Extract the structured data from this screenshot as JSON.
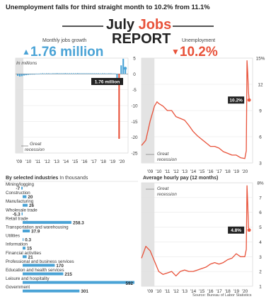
{
  "headline": "Unemployment falls for third straight month to 10.2% from 11.1%",
  "title": {
    "part1": "July ",
    "part2": "Jobs",
    "part3": "REPORT"
  },
  "jobs_growth": {
    "label": "Monthly jobs growth",
    "value": "1.76 million",
    "arrow": "▲",
    "units": "In millions",
    "callout": "1.76 million",
    "recession_label": [
      "Great",
      "recession"
    ]
  },
  "unemployment": {
    "label": "Unemployment",
    "value": "10.2%",
    "arrow": "▼",
    "callout": "10.2%",
    "recession_label": [
      "Great",
      "recession"
    ]
  },
  "industries": {
    "label": "By selected industries",
    "units": "In thousands"
  },
  "wages": {
    "label": "Average hourly pay (12 months)",
    "callout": "4.8%",
    "recession_label": [
      "Great",
      "recession"
    ]
  },
  "source": "Source: Bureau of Labor Statistics",
  "colors": {
    "blue": "#4aa3d6",
    "red": "#e8523a",
    "recession": "#e3e3e3",
    "grid": "#e2e2e2"
  },
  "chart_data": [
    {
      "type": "bar",
      "title": "Monthly jobs growth",
      "xlabel": "",
      "ylabel": "In millions",
      "x_ticks": [
        "'09",
        "'10",
        "'11",
        "'12",
        "'13",
        "'14",
        "'15",
        "'16",
        "'17",
        "'18",
        "'19",
        "'20"
      ],
      "y_ticks": [
        5,
        0,
        -5,
        -10,
        -15,
        -20,
        -25
      ],
      "ylim": [
        -25,
        5
      ],
      "series": [
        {
          "values": [
            -0.6,
            -0.8,
            -0.7,
            -0.5,
            -0.4,
            -0.3,
            -0.2,
            -0.1,
            0.0,
            0.1,
            0.1,
            0.15,
            0.2,
            0.15,
            0.2,
            0.2,
            0.15,
            0.2,
            0.2,
            0.25,
            0.2,
            0.2,
            0.2,
            0.25,
            0.2,
            0.2,
            0.2,
            0.2,
            0.2,
            0.25,
            0.2,
            0.2,
            0.2,
            0.2,
            0.2,
            0.2,
            0.2,
            0.2,
            0.2,
            0.2,
            0.15,
            0.2,
            0.2,
            0.15,
            0.2,
            0.2,
            0.15,
            0.15,
            -1.4,
            -20.5,
            2.7,
            4.8,
            1.76
          ]
        }
      ],
      "annotations": [
        "1.76 million"
      ],
      "shaded_region": [
        "'09"
      ]
    },
    {
      "type": "line",
      "title": "Unemployment",
      "xlabel": "",
      "ylabel": "",
      "x_ticks": [
        "'09",
        "'10",
        "'11",
        "'12",
        "'13",
        "'14",
        "'15",
        "'16",
        "'17",
        "'18",
        "'19",
        "'20"
      ],
      "y_ticks": [
        "15%",
        12,
        9,
        6,
        3
      ],
      "ylim": [
        3,
        15
      ],
      "x": [
        2008.0,
        2008.5,
        2009.0,
        2009.5,
        2009.8,
        2010.0,
        2010.5,
        2011.0,
        2011.5,
        2012.0,
        2012.5,
        2013.0,
        2013.5,
        2014.0,
        2014.5,
        2015.0,
        2015.5,
        2016.0,
        2016.5,
        2017.0,
        2017.5,
        2018.0,
        2018.5,
        2019.0,
        2019.5,
        2020.0,
        2020.17,
        2020.25,
        2020.33,
        2020.42,
        2020.5
      ],
      "series": [
        {
          "values": [
            5.0,
            5.6,
            7.8,
            9.5,
            10.0,
            9.8,
            9.5,
            9.0,
            9.0,
            8.3,
            8.1,
            7.9,
            7.3,
            6.6,
            6.1,
            5.7,
            5.3,
            4.9,
            4.9,
            4.7,
            4.3,
            4.1,
            3.9,
            3.9,
            3.6,
            3.5,
            4.4,
            14.7,
            13.3,
            11.1,
            10.2
          ]
        }
      ],
      "annotations": [
        "10.2%"
      ],
      "shaded_region": [
        "'09"
      ]
    },
    {
      "type": "bar",
      "title": "By selected industries",
      "xlabel": "",
      "ylabel": "In thousands",
      "categories": [
        "Mining/logging",
        "Construction",
        "Manufacturing",
        "Wholesale trade",
        "Retail trade",
        "Transportation and warehousing",
        "Utilities",
        "Information",
        "Financial activities",
        "Professional and business services",
        "Education and health services",
        "Leisure and hospitality",
        "Government"
      ],
      "values": [
        -7,
        20,
        26,
        -5.3,
        258.3,
        37.9,
        0.3,
        15,
        21,
        170,
        215,
        592,
        301
      ],
      "value_labels": [
        "-7",
        "20",
        "26",
        "-5.3",
        "258.3",
        "37.9",
        "0.3",
        "15",
        "21",
        "170",
        "215",
        "592",
        "301"
      ]
    },
    {
      "type": "line",
      "title": "Average hourly pay (12 months)",
      "xlabel": "",
      "ylabel": "",
      "x_ticks": [
        "'09",
        "'10",
        "'11",
        "'12",
        "'13",
        "'14",
        "'15",
        "'16",
        "'17",
        "'18",
        "'19",
        "'20"
      ],
      "y_ticks": [
        "8%",
        7,
        6,
        5,
        4,
        3,
        2,
        1
      ],
      "ylim": [
        1,
        8
      ],
      "x": [
        2008.0,
        2008.5,
        2009.0,
        2009.5,
        2010.0,
        2010.5,
        2011.0,
        2011.5,
        2012.0,
        2012.5,
        2013.0,
        2013.5,
        2014.0,
        2014.5,
        2015.0,
        2015.5,
        2016.0,
        2016.5,
        2017.0,
        2017.5,
        2018.0,
        2018.5,
        2019.0,
        2019.5,
        2020.0,
        2020.17,
        2020.25,
        2020.33,
        2020.42,
        2020.5
      ],
      "series": [
        {
          "values": [
            2.9,
            3.7,
            3.4,
            2.7,
            2.0,
            1.8,
            1.9,
            2.0,
            1.7,
            2.0,
            2.1,
            2.0,
            2.0,
            2.1,
            2.2,
            2.3,
            2.5,
            2.6,
            2.5,
            2.6,
            2.8,
            2.9,
            3.2,
            3.0,
            3.0,
            3.5,
            7.8,
            6.6,
            5.0,
            4.8
          ]
        }
      ],
      "annotations": [
        "4.8%"
      ],
      "shaded_region": [
        "'09"
      ]
    }
  ]
}
